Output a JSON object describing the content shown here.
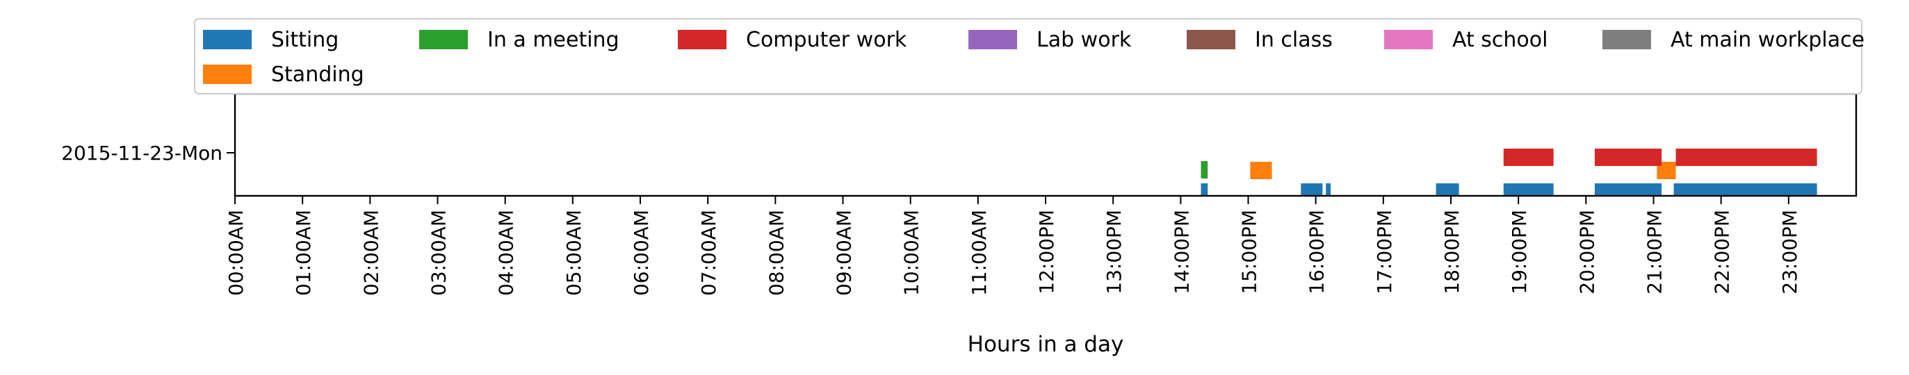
{
  "chart_data": {
    "type": "gantt",
    "xlabel": "Hours in a day",
    "xlim": [
      0,
      24
    ],
    "xticks": [
      "00:00AM",
      "01:00AM",
      "02:00AM",
      "03:00AM",
      "04:00AM",
      "05:00AM",
      "06:00AM",
      "07:00AM",
      "08:00AM",
      "09:00AM",
      "10:00AM",
      "11:00AM",
      "12:00PM",
      "13:00PM",
      "14:00PM",
      "15:00PM",
      "16:00PM",
      "17:00PM",
      "18:00PM",
      "19:00PM",
      "20:00PM",
      "21:00PM",
      "22:00PM",
      "23:00PM"
    ],
    "ylabel": "",
    "categories": [
      "2015-11-23-Mon"
    ],
    "grid": false,
    "legend_position": "top",
    "series": [
      {
        "name": "Sitting",
        "color": "#1f77b4",
        "level": 0,
        "intervals": [
          [
            14.3,
            14.4
          ],
          [
            15.78,
            16.1
          ],
          [
            16.15,
            16.22
          ],
          [
            17.78,
            18.12
          ],
          [
            18.78,
            19.52
          ],
          [
            20.13,
            21.12
          ],
          [
            21.3,
            23.42
          ]
        ]
      },
      {
        "name": "Standing",
        "color": "#ff7f0e",
        "level": 1,
        "intervals": [
          [
            15.03,
            15.35
          ],
          [
            21.05,
            21.33
          ]
        ]
      },
      {
        "name": "In a meeting",
        "color": "#2ca02c",
        "level": 2,
        "intervals": [
          [
            14.3,
            14.4
          ]
        ]
      },
      {
        "name": "Computer work",
        "color": "#d62728",
        "level": 3,
        "intervals": [
          [
            18.78,
            19.52
          ],
          [
            20.13,
            21.12
          ],
          [
            21.33,
            23.42
          ]
        ]
      },
      {
        "name": "Lab work",
        "color": "#9467bd",
        "level": 4,
        "intervals": []
      },
      {
        "name": "In class",
        "color": "#8c564b",
        "level": 5,
        "intervals": []
      },
      {
        "name": "At school",
        "color": "#e377c2",
        "level": 6,
        "intervals": []
      },
      {
        "name": "At main workplace",
        "color": "#7f7f7f",
        "level": 7,
        "intervals": []
      }
    ]
  }
}
